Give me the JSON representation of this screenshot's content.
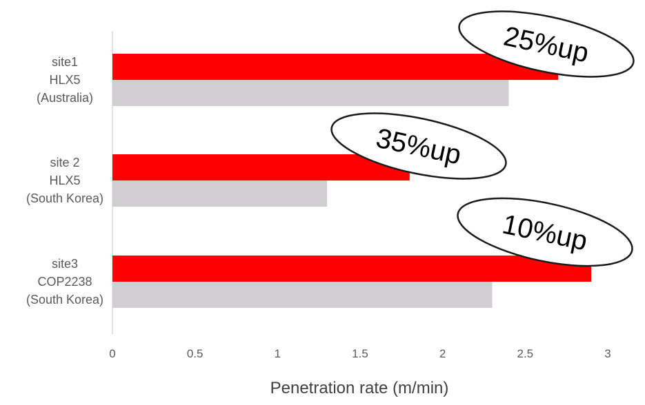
{
  "chart_data": {
    "type": "bar",
    "orientation": "horizontal",
    "categories": [
      [
        "site1",
        "HLX5",
        "(Australia)"
      ],
      [
        "site 2",
        "HLX5",
        "(South Korea)"
      ],
      [
        "site3",
        "COP2238",
        "(South Korea)"
      ]
    ],
    "series": [
      {
        "values": [
          2.7,
          1.8,
          2.9
        ],
        "color": "#ff0000"
      },
      {
        "values": [
          2.4,
          1.3,
          2.3
        ],
        "color": "#d0ced0"
      }
    ],
    "xlabel": "Penetration rate (m/min)",
    "xlim": [
      0,
      3
    ],
    "xticks": [
      "0",
      "0.5",
      "1",
      "1.5",
      "2",
      "2.5",
      "3"
    ],
    "grid": false,
    "annotations": [
      "25%up",
      "35%up",
      "10%up"
    ],
    "axis_color": "#d9d9d9"
  }
}
